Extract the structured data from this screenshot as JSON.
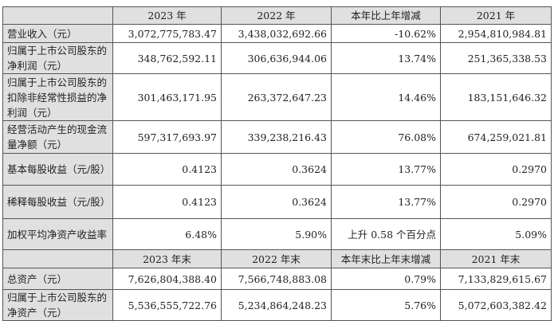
{
  "header1": [
    "",
    "2023 年",
    "2022 年",
    "本年比上年增减",
    "2021 年"
  ],
  "rows1": [
    {
      "label": "营业收入（元）",
      "values": [
        "3,072,775,783.47",
        "3,438,032,692.66",
        "-10.62%",
        "2,954,810,984.81"
      ]
    },
    {
      "label": "归属于上市公司股东的净利润（元）",
      "values": [
        "348,762,592.11",
        "306,636,944.06",
        "13.74%",
        "251,365,338.53"
      ]
    },
    {
      "label": "归属于上市公司股东的扣除非经常性损益的净利润（元）",
      "values": [
        "301,463,171.95",
        "263,372,647.23",
        "14.46%",
        "183,151,646.32"
      ]
    },
    {
      "label": "经营活动产生的现金流量净额（元）",
      "values": [
        "597,317,693.97",
        "339,238,216.43",
        "76.08%",
        "674,259,021.81"
      ]
    },
    {
      "label": "基本每股收益（元/股）",
      "values": [
        "0.4123",
        "0.3624",
        "13.77%",
        "0.2970"
      ]
    },
    {
      "label": "稀释每股收益（元/股）",
      "values": [
        "0.4123",
        "0.3624",
        "13.77%",
        "0.2970"
      ]
    },
    {
      "label": "加权平均净资产收益率",
      "values": [
        "6.48%",
        "5.90%",
        "上升 0.58 个百分点",
        "5.09%"
      ]
    }
  ],
  "header2": [
    "",
    "2023 年末",
    "2022 年末",
    "本年末比上年末增减",
    "2021 年末"
  ],
  "rows2": [
    {
      "label": "总资产（元）",
      "values": [
        "7,626,804,388.40",
        "7,566,748,883.08",
        "0.79%",
        "7,133,829,615.67"
      ]
    },
    {
      "label": "归属于上市公司股东的净资产（元）",
      "values": [
        "5,536,555,722.76",
        "5,234,864,248.23",
        "5.76%",
        "5,072,603,382.42"
      ]
    }
  ]
}
